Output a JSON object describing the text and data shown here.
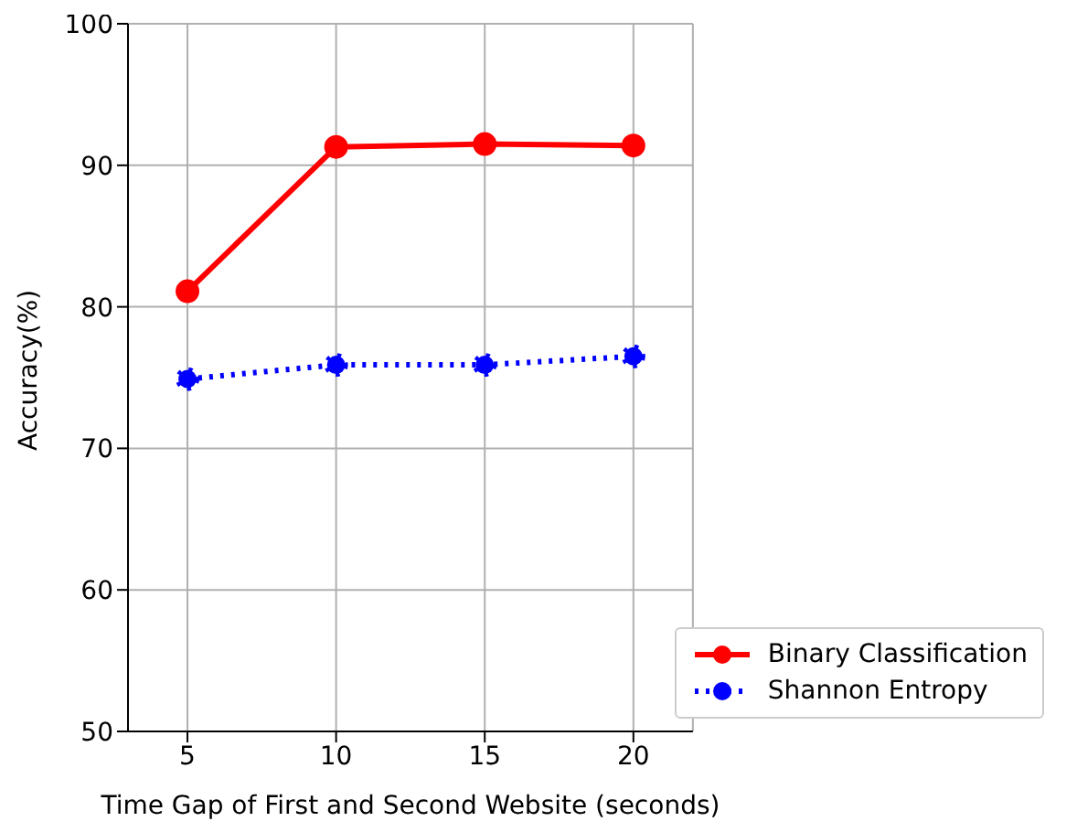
{
  "chart_data": {
    "type": "line",
    "xlabel": "Time Gap of First and Second Website (seconds)",
    "ylabel": "Accuracy(%)",
    "x": [
      5,
      10,
      15,
      20
    ],
    "series": [
      {
        "name": "Binary Classification",
        "color": "#ff0000",
        "values": [
          81.1,
          91.3,
          91.5,
          91.4
        ],
        "line_style": "solid"
      },
      {
        "name": "Shannon Entropy",
        "color": "#0000ff",
        "values": [
          74.9,
          75.9,
          75.9,
          76.5
        ],
        "line_style": "dotted"
      }
    ],
    "xlim": [
      3,
      22
    ],
    "xticks": [
      5,
      10,
      15,
      20
    ],
    "ylim": [
      50,
      100
    ],
    "yticks": [
      50,
      60,
      70,
      80,
      90,
      100
    ],
    "grid": true,
    "legend": "bottom right",
    "marker": "circle"
  }
}
